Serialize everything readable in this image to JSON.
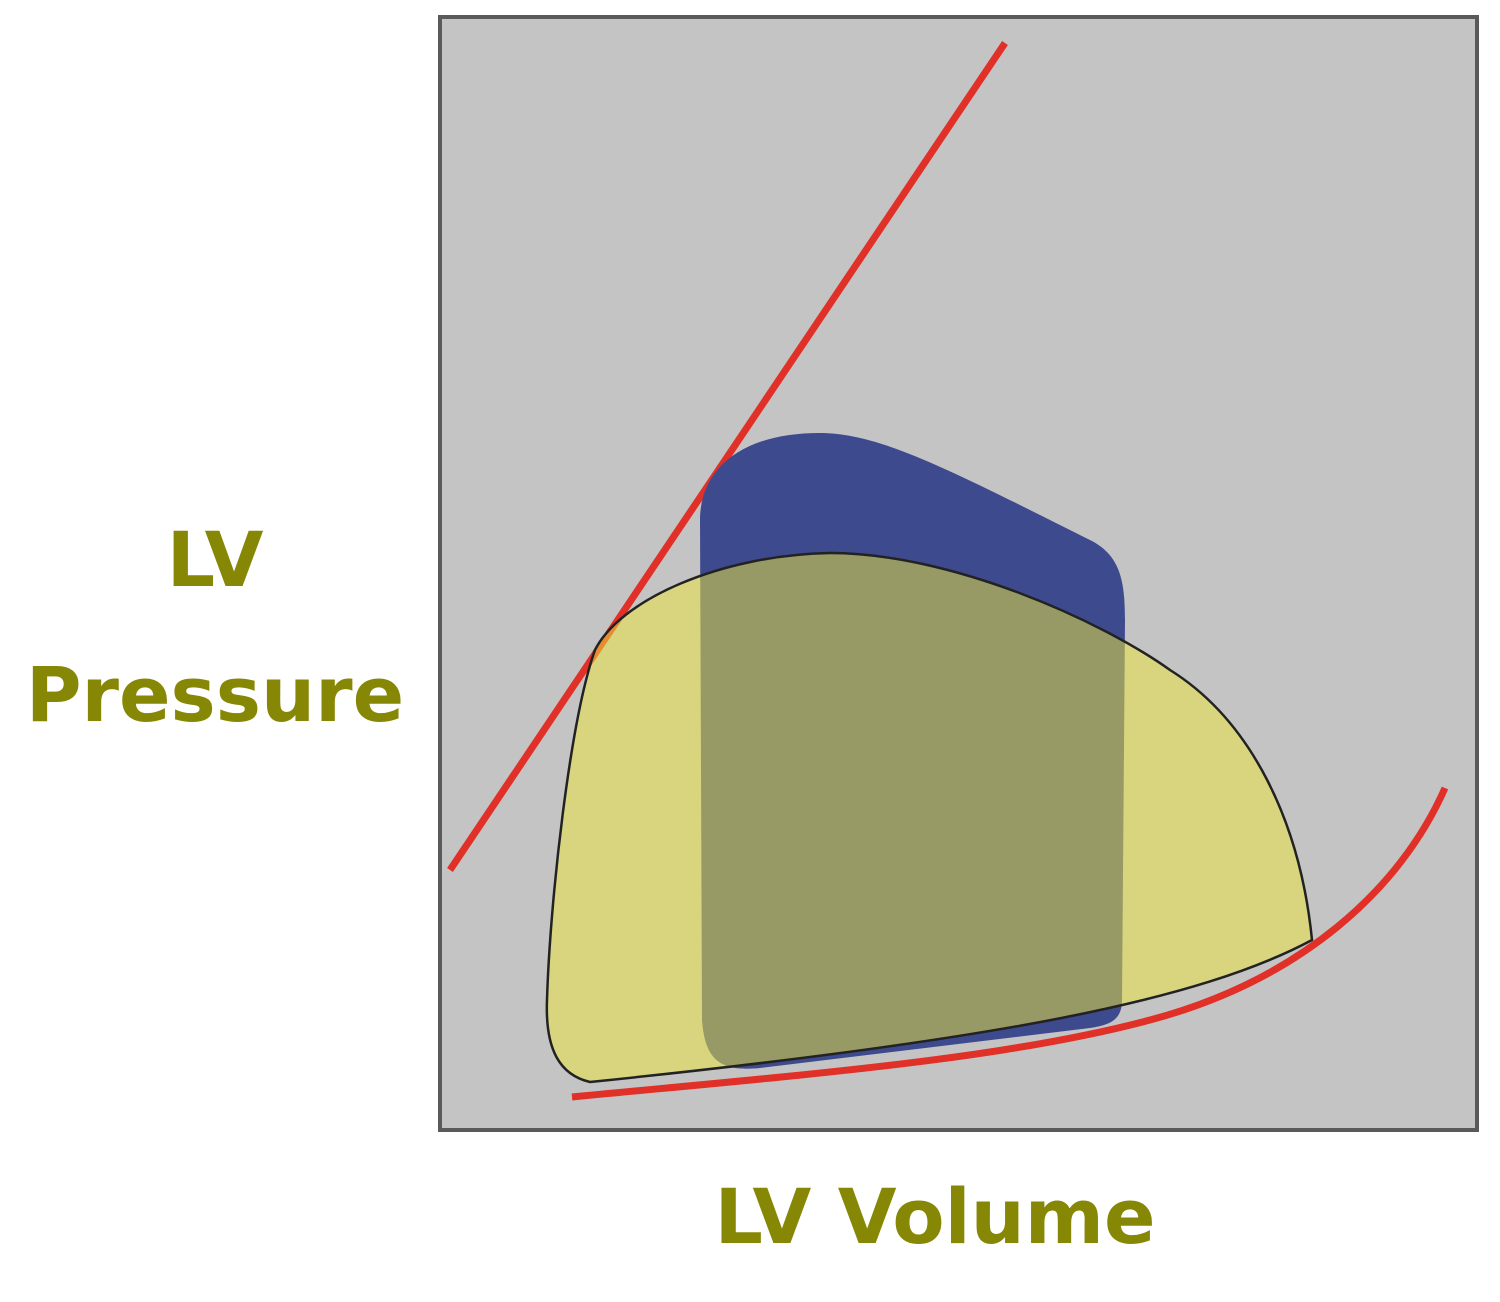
{
  "y_axis": {
    "label_lines": [
      "LV",
      "Pressure"
    ]
  },
  "x_axis": {
    "label": "LV Volume"
  }
}
